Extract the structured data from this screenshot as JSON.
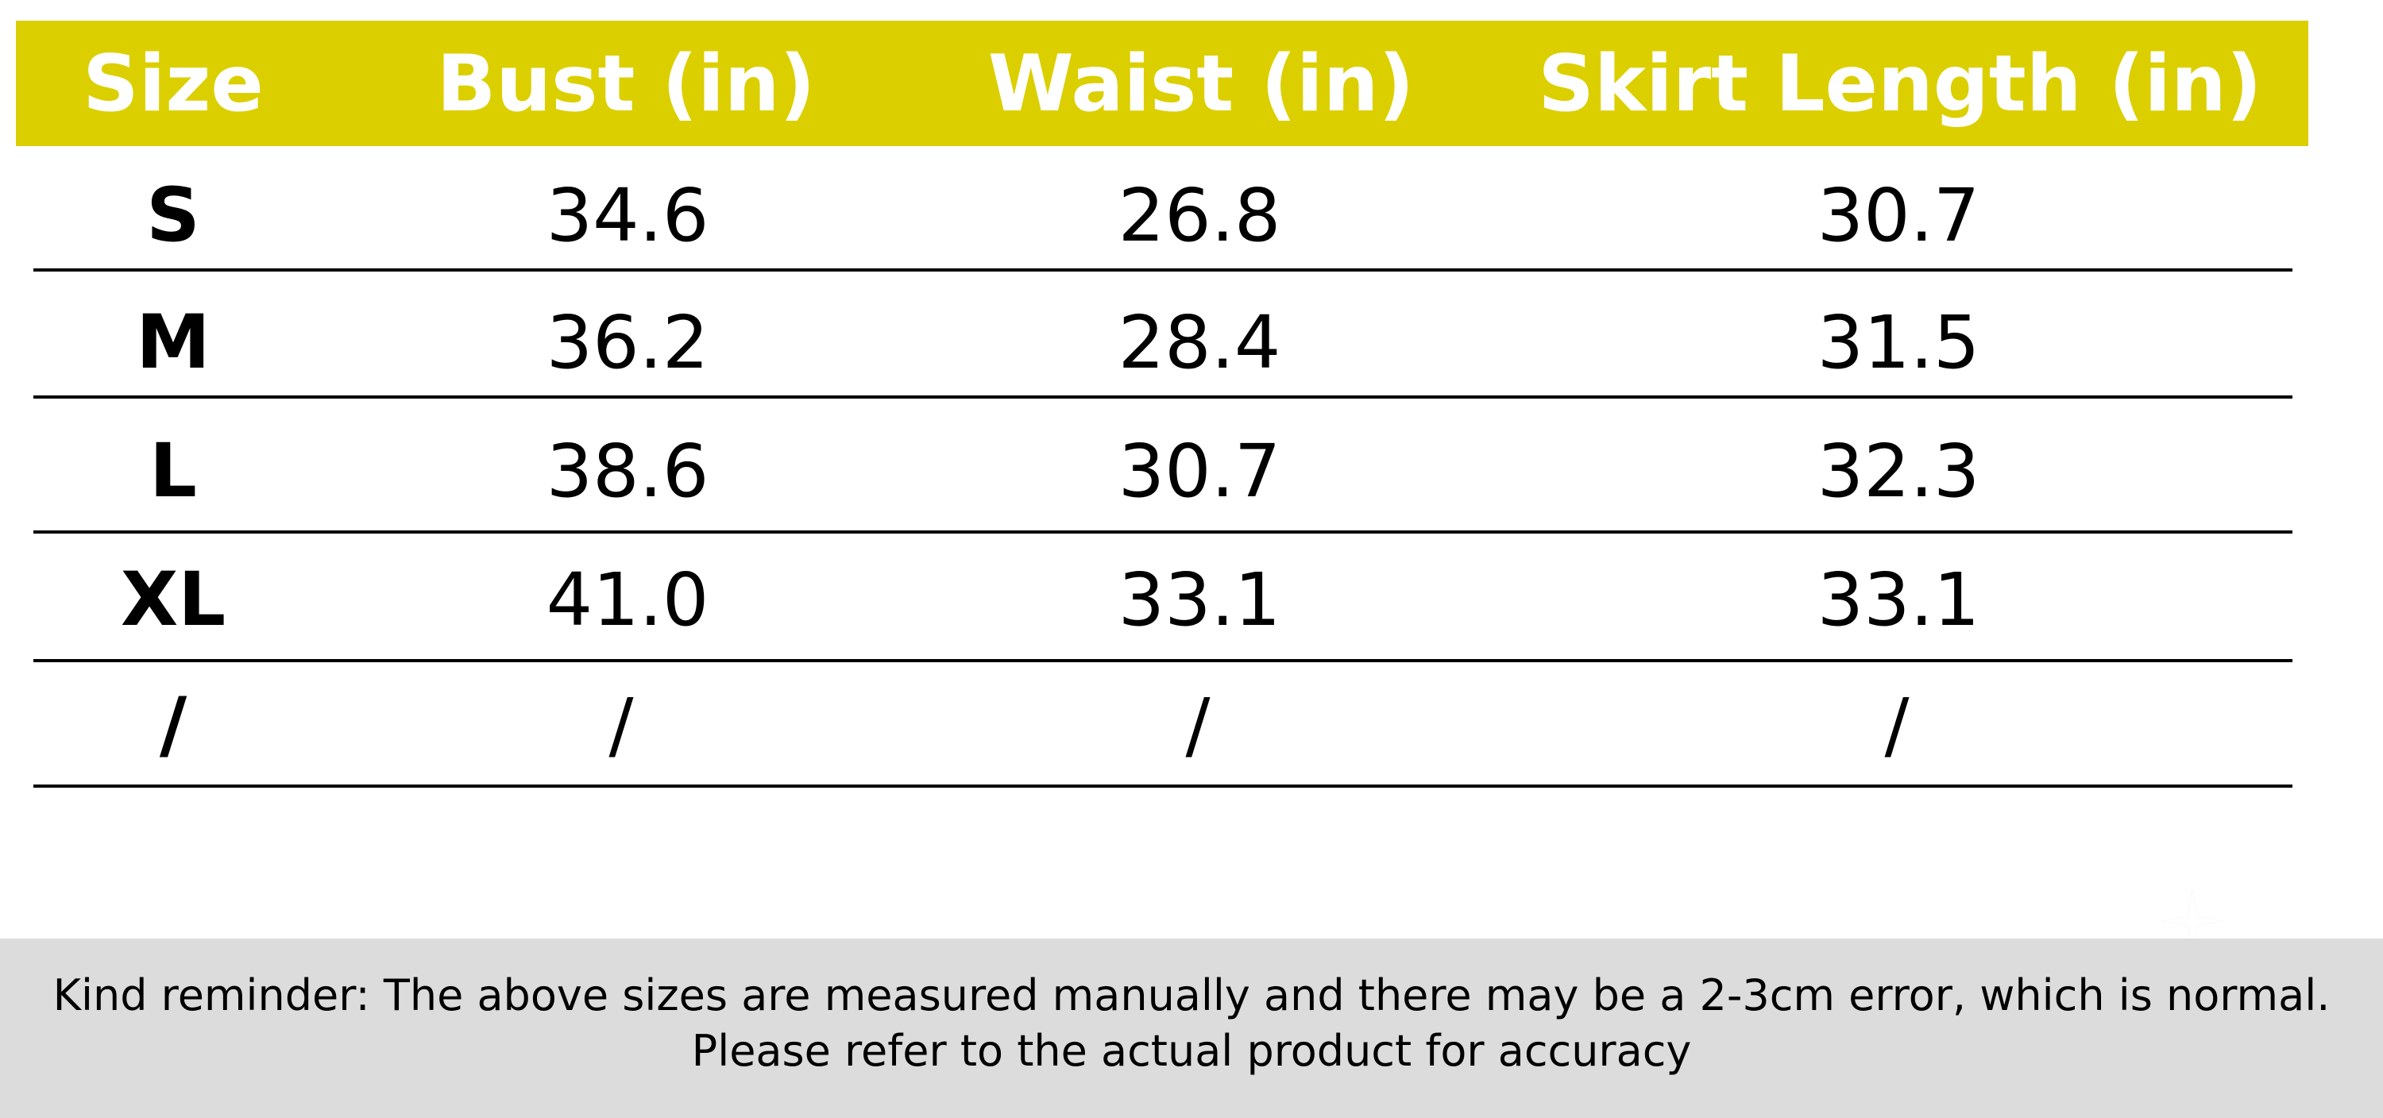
{
  "table": {
    "headers": [
      "Size",
      "Bust (in)",
      "Waist (in)",
      "Skirt Length (in)"
    ],
    "rows": [
      [
        "S",
        "34.6",
        "26.8",
        "30.7"
      ],
      [
        "M",
        "36.2",
        "28.4",
        "31.5"
      ],
      [
        "L",
        "38.6",
        "30.7",
        "32.3"
      ],
      [
        "XL",
        "41.0",
        "33.1",
        "33.1"
      ],
      [
        "/",
        "/",
        "/",
        "/"
      ]
    ]
  },
  "footer": {
    "line1": "Kind reminder: The above sizes are measured manually and there may be a 2-3cm error, which is normal.",
    "line2": "Please refer to the actual product for accuracy"
  },
  "colors": {
    "header_bg": "#dccf00",
    "header_text": "#ffffff",
    "footer_bg": "#dcdcdc"
  }
}
